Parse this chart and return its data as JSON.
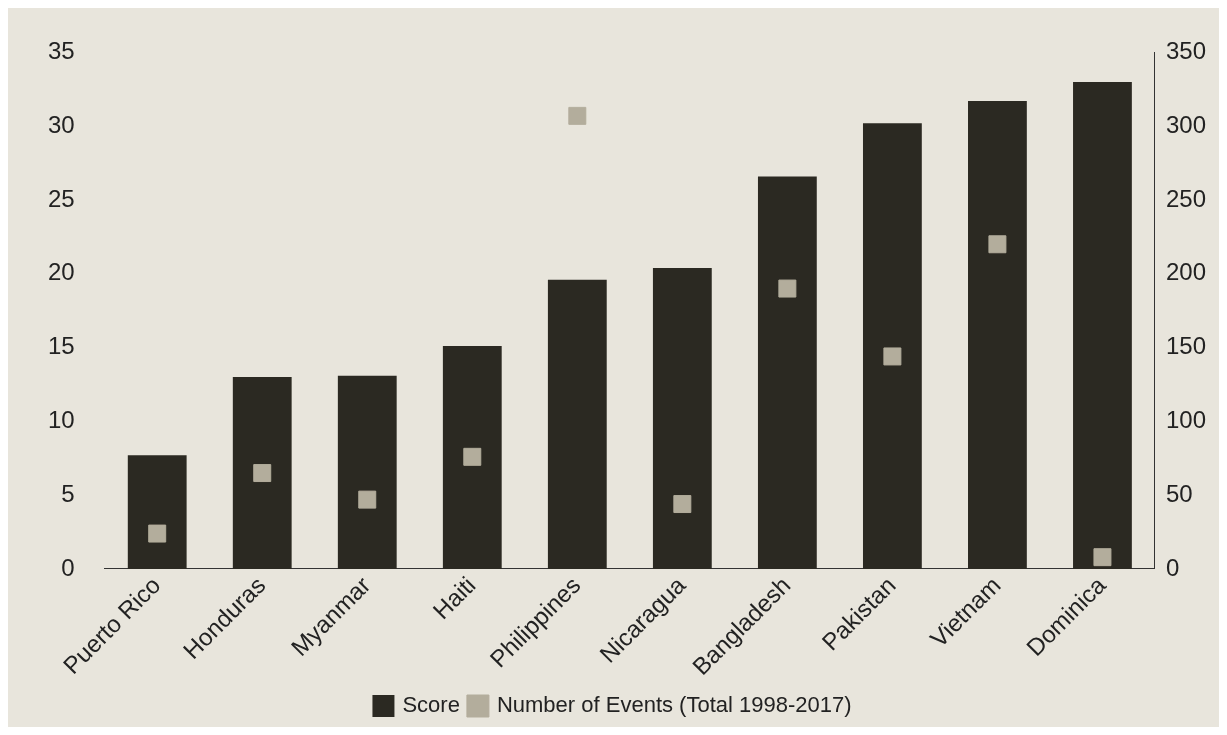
{
  "chart_data": {
    "type": "bar",
    "categories": [
      "Puerto Rico",
      "Honduras",
      "Myanmar",
      "Haiti",
      "Philippines",
      "Nicaragua",
      "Bangladesh",
      "Pakistan",
      "Vietnam",
      "Dominica"
    ],
    "series": [
      {
        "name": "Score",
        "color": "#2b2922",
        "values": [
          7.7,
          13.0,
          13.1,
          15.1,
          19.6,
          20.4,
          26.6,
          30.2,
          31.7,
          33.0
        ]
      },
      {
        "name": "Number of Events (Total 1998-2017)",
        "type": "scatter",
        "axis": "y2",
        "color": "#b3ad9c",
        "values": [
          24,
          65,
          47,
          76,
          307,
          44,
          190,
          144,
          220,
          8
        ]
      }
    ],
    "ylim": [
      0,
      35
    ],
    "yticks": [
      0,
      5,
      10,
      15,
      20,
      25,
      30,
      35
    ],
    "y2lim": [
      0,
      350
    ],
    "y2ticks": [
      0,
      50,
      100,
      150,
      200,
      250,
      300,
      350
    ],
    "grid": false,
    "legend": "bottom",
    "marker": "square"
  }
}
